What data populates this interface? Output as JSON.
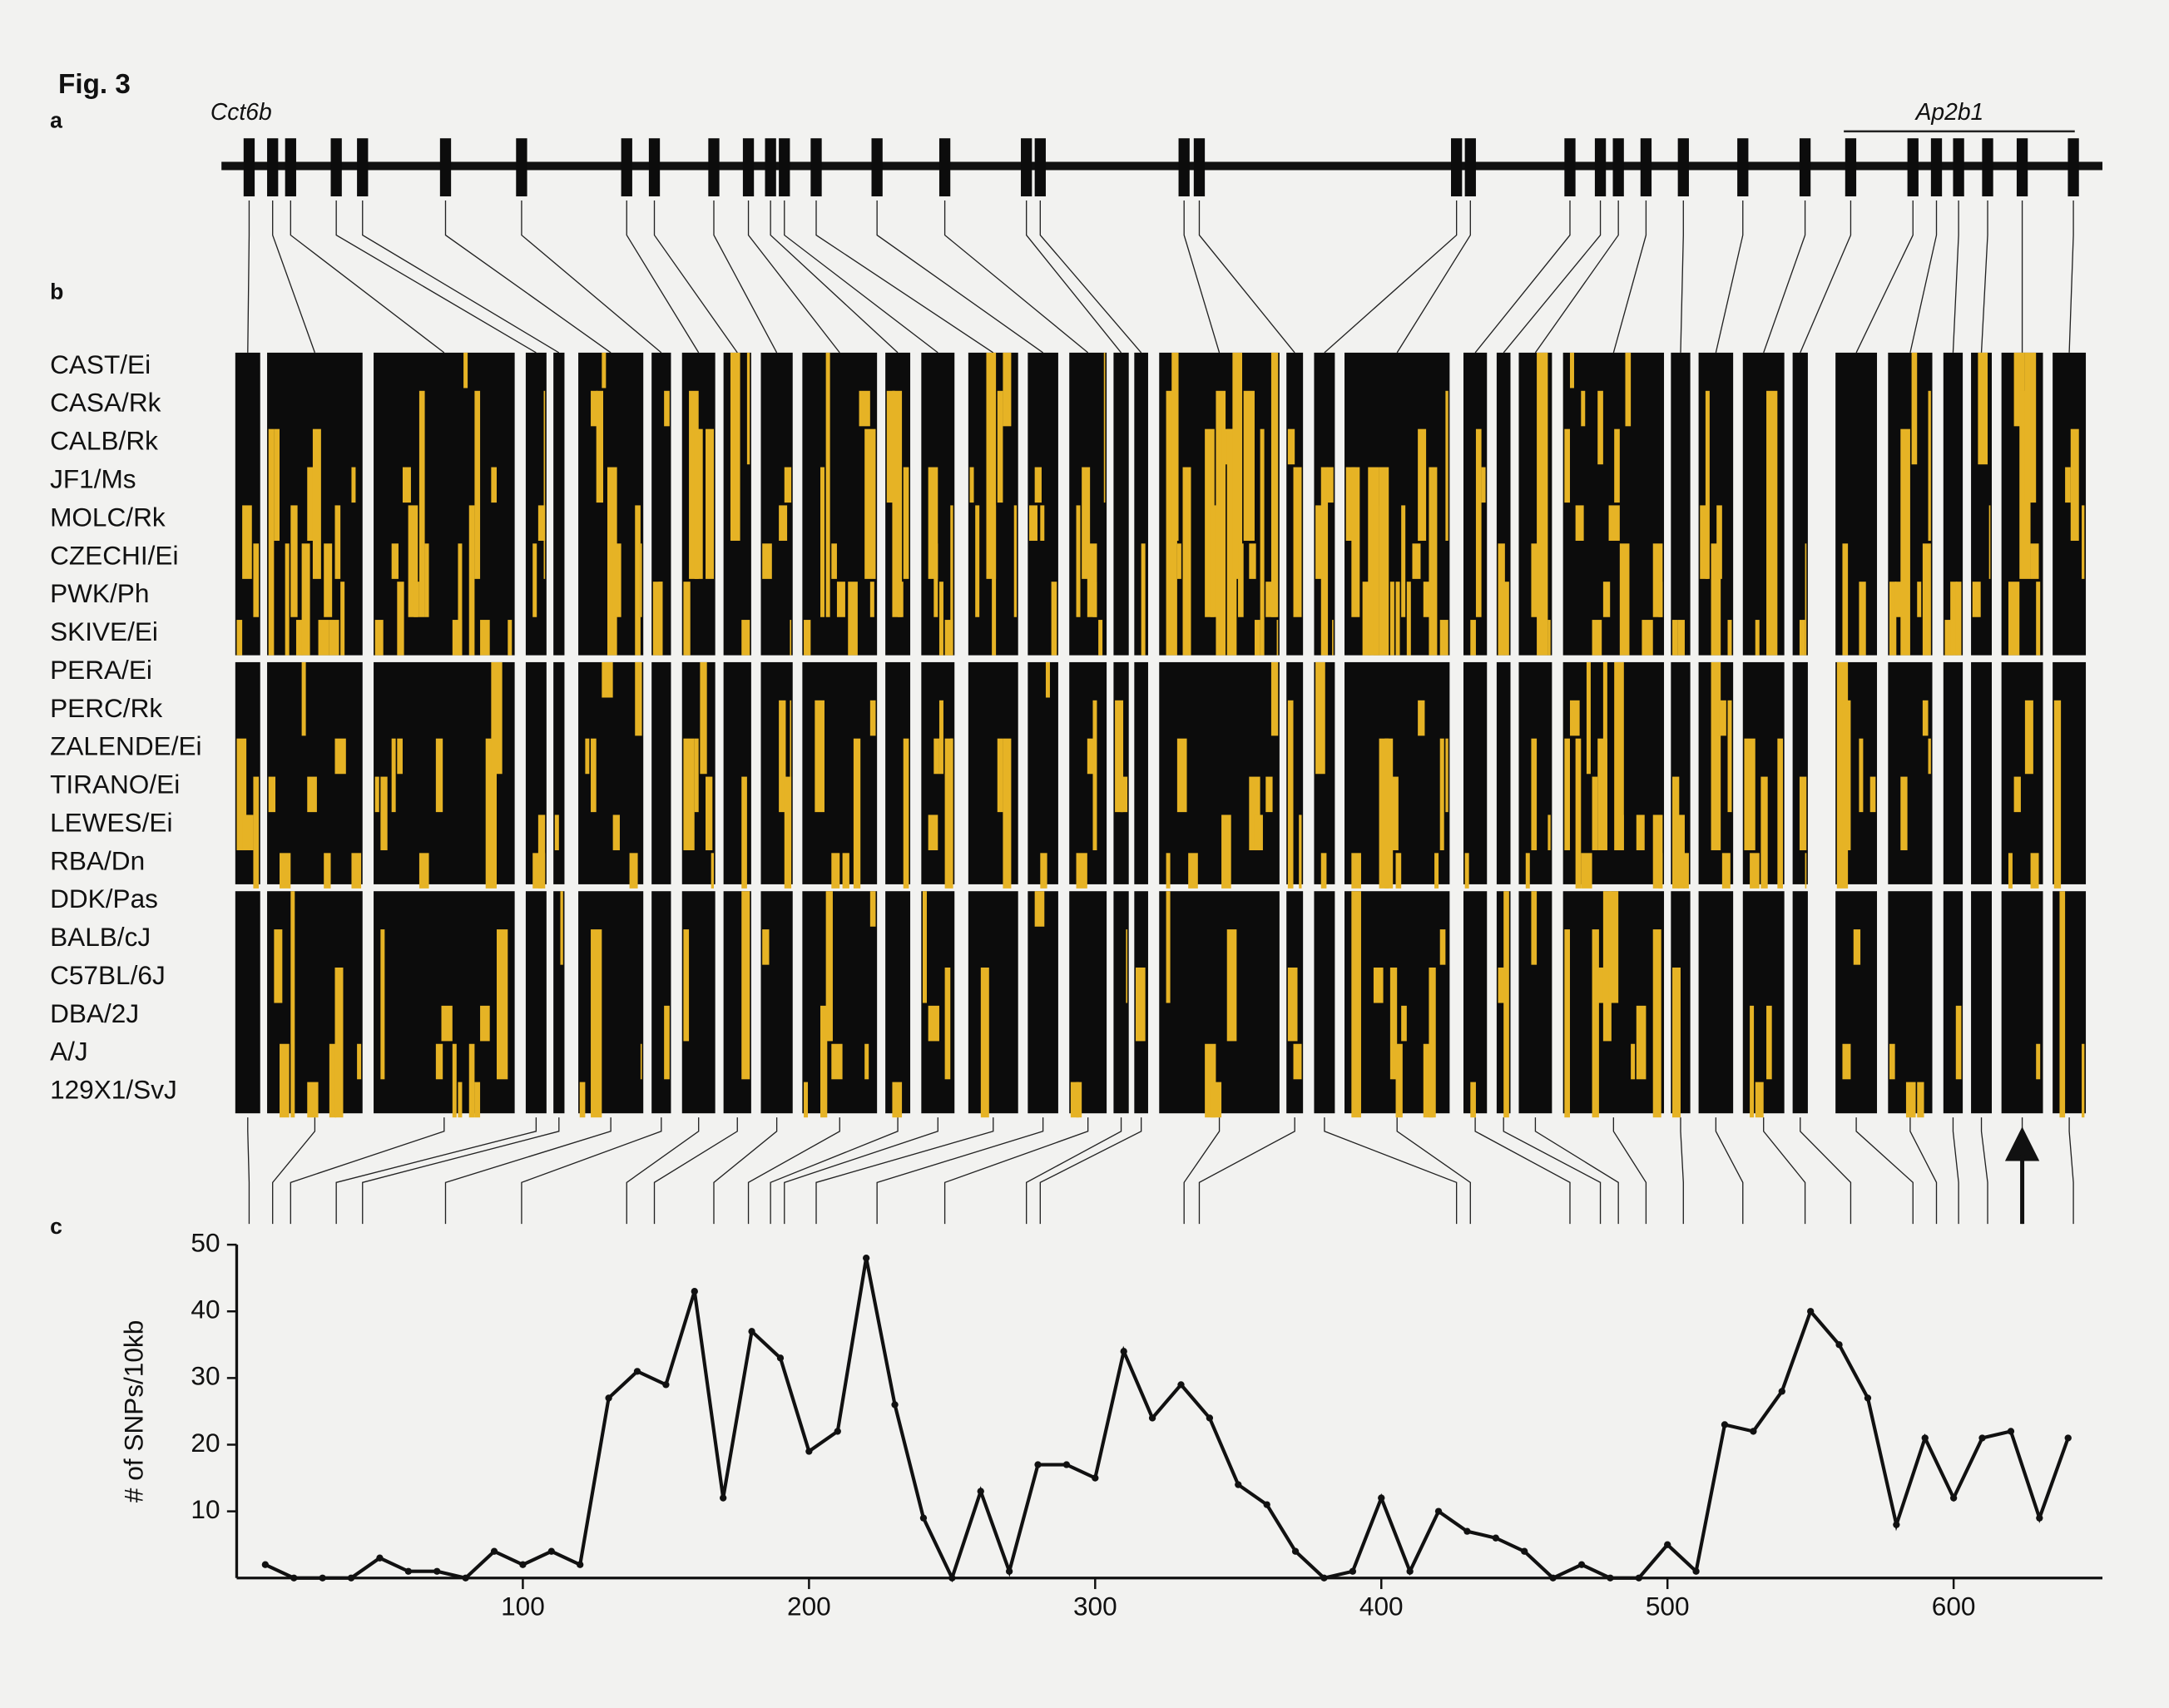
{
  "figure_label": "Fig. 3",
  "panel_labels": [
    "a",
    "b",
    "c"
  ],
  "genes": [
    "Cct6b",
    "Ap2b1"
  ],
  "strains": [
    "CAST/Ei",
    "CASA/Rk",
    "CALB/Rk",
    "JF1/Ms",
    "MOLC/Rk",
    "CZECHI/Ei",
    "PWK/Ph",
    "SKIVE/Ei",
    "PERA/Ei",
    "PERC/Rk",
    "ZALENDE/Ei",
    "TIRANO/Ei",
    "LEWES/Ei",
    "RBA/Dn",
    "DDK/Pas",
    "BALB/cJ",
    "C57BL/6J",
    "DBA/2J",
    "A/J",
    "129X1/SvJ"
  ],
  "chart_data": {
    "type": "line",
    "y_label": "# of SNPs/10kb",
    "x": [
      10,
      20,
      30,
      40,
      50,
      60,
      70,
      80,
      90,
      100,
      110,
      120,
      130,
      140,
      150,
      160,
      170,
      180,
      190,
      200,
      210,
      220,
      230,
      240,
      250,
      260,
      270,
      280,
      290,
      300,
      310,
      320,
      330,
      340,
      350,
      360,
      370,
      380,
      390,
      400,
      410,
      420,
      430,
      440,
      450,
      460,
      470,
      480,
      490,
      500,
      510,
      520,
      530,
      540,
      550,
      560,
      570,
      580,
      590,
      600,
      610,
      620,
      630,
      640
    ],
    "series": [
      {
        "color": "#111111",
        "values": [
          2,
          0,
          0,
          0,
          3,
          1,
          1,
          0,
          4,
          2,
          4,
          2,
          27,
          31,
          29,
          43,
          12,
          37,
          33,
          19,
          22,
          48,
          26,
          9,
          0,
          13,
          1,
          17,
          17,
          15,
          34,
          24,
          29,
          24,
          14,
          11,
          4,
          0,
          1,
          12,
          1,
          10,
          7,
          6,
          4,
          0,
          2,
          0,
          0,
          5,
          1,
          23,
          22,
          28,
          40,
          35,
          27,
          8,
          21,
          12,
          21,
          22,
          9,
          21
        ]
      }
    ],
    "xlim": [
      0,
      652
    ],
    "ylim": [
      0,
      50
    ],
    "xticks": [
      100,
      200,
      300,
      400,
      500,
      600
    ],
    "yticks": [
      10,
      20,
      30,
      40,
      50
    ]
  }
}
